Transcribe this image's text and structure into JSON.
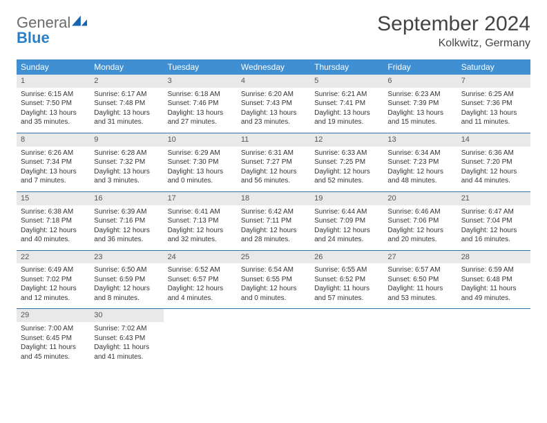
{
  "logo": {
    "text_gray": "General",
    "text_blue": "Blue"
  },
  "title": "September 2024",
  "location": "Kolkwitz, Germany",
  "colors": {
    "header_bg": "#3f8fd2",
    "header_text": "#ffffff",
    "daynum_bg": "#e9e9e9",
    "daynum_text": "#555555",
    "week_border": "#2f6fa8",
    "body_text": "#333333",
    "logo_gray": "#6a6a6a",
    "logo_blue": "#2a7fc9",
    "page_bg": "#ffffff"
  },
  "day_headers": [
    "Sunday",
    "Monday",
    "Tuesday",
    "Wednesday",
    "Thursday",
    "Friday",
    "Saturday"
  ],
  "weeks": [
    [
      {
        "n": "1",
        "sr": "Sunrise: 6:15 AM",
        "ss": "Sunset: 7:50 PM",
        "dl": "Daylight: 13 hours and 35 minutes."
      },
      {
        "n": "2",
        "sr": "Sunrise: 6:17 AM",
        "ss": "Sunset: 7:48 PM",
        "dl": "Daylight: 13 hours and 31 minutes."
      },
      {
        "n": "3",
        "sr": "Sunrise: 6:18 AM",
        "ss": "Sunset: 7:46 PM",
        "dl": "Daylight: 13 hours and 27 minutes."
      },
      {
        "n": "4",
        "sr": "Sunrise: 6:20 AM",
        "ss": "Sunset: 7:43 PM",
        "dl": "Daylight: 13 hours and 23 minutes."
      },
      {
        "n": "5",
        "sr": "Sunrise: 6:21 AM",
        "ss": "Sunset: 7:41 PM",
        "dl": "Daylight: 13 hours and 19 minutes."
      },
      {
        "n": "6",
        "sr": "Sunrise: 6:23 AM",
        "ss": "Sunset: 7:39 PM",
        "dl": "Daylight: 13 hours and 15 minutes."
      },
      {
        "n": "7",
        "sr": "Sunrise: 6:25 AM",
        "ss": "Sunset: 7:36 PM",
        "dl": "Daylight: 13 hours and 11 minutes."
      }
    ],
    [
      {
        "n": "8",
        "sr": "Sunrise: 6:26 AM",
        "ss": "Sunset: 7:34 PM",
        "dl": "Daylight: 13 hours and 7 minutes."
      },
      {
        "n": "9",
        "sr": "Sunrise: 6:28 AM",
        "ss": "Sunset: 7:32 PM",
        "dl": "Daylight: 13 hours and 3 minutes."
      },
      {
        "n": "10",
        "sr": "Sunrise: 6:29 AM",
        "ss": "Sunset: 7:30 PM",
        "dl": "Daylight: 13 hours and 0 minutes."
      },
      {
        "n": "11",
        "sr": "Sunrise: 6:31 AM",
        "ss": "Sunset: 7:27 PM",
        "dl": "Daylight: 12 hours and 56 minutes."
      },
      {
        "n": "12",
        "sr": "Sunrise: 6:33 AM",
        "ss": "Sunset: 7:25 PM",
        "dl": "Daylight: 12 hours and 52 minutes."
      },
      {
        "n": "13",
        "sr": "Sunrise: 6:34 AM",
        "ss": "Sunset: 7:23 PM",
        "dl": "Daylight: 12 hours and 48 minutes."
      },
      {
        "n": "14",
        "sr": "Sunrise: 6:36 AM",
        "ss": "Sunset: 7:20 PM",
        "dl": "Daylight: 12 hours and 44 minutes."
      }
    ],
    [
      {
        "n": "15",
        "sr": "Sunrise: 6:38 AM",
        "ss": "Sunset: 7:18 PM",
        "dl": "Daylight: 12 hours and 40 minutes."
      },
      {
        "n": "16",
        "sr": "Sunrise: 6:39 AM",
        "ss": "Sunset: 7:16 PM",
        "dl": "Daylight: 12 hours and 36 minutes."
      },
      {
        "n": "17",
        "sr": "Sunrise: 6:41 AM",
        "ss": "Sunset: 7:13 PM",
        "dl": "Daylight: 12 hours and 32 minutes."
      },
      {
        "n": "18",
        "sr": "Sunrise: 6:42 AM",
        "ss": "Sunset: 7:11 PM",
        "dl": "Daylight: 12 hours and 28 minutes."
      },
      {
        "n": "19",
        "sr": "Sunrise: 6:44 AM",
        "ss": "Sunset: 7:09 PM",
        "dl": "Daylight: 12 hours and 24 minutes."
      },
      {
        "n": "20",
        "sr": "Sunrise: 6:46 AM",
        "ss": "Sunset: 7:06 PM",
        "dl": "Daylight: 12 hours and 20 minutes."
      },
      {
        "n": "21",
        "sr": "Sunrise: 6:47 AM",
        "ss": "Sunset: 7:04 PM",
        "dl": "Daylight: 12 hours and 16 minutes."
      }
    ],
    [
      {
        "n": "22",
        "sr": "Sunrise: 6:49 AM",
        "ss": "Sunset: 7:02 PM",
        "dl": "Daylight: 12 hours and 12 minutes."
      },
      {
        "n": "23",
        "sr": "Sunrise: 6:50 AM",
        "ss": "Sunset: 6:59 PM",
        "dl": "Daylight: 12 hours and 8 minutes."
      },
      {
        "n": "24",
        "sr": "Sunrise: 6:52 AM",
        "ss": "Sunset: 6:57 PM",
        "dl": "Daylight: 12 hours and 4 minutes."
      },
      {
        "n": "25",
        "sr": "Sunrise: 6:54 AM",
        "ss": "Sunset: 6:55 PM",
        "dl": "Daylight: 12 hours and 0 minutes."
      },
      {
        "n": "26",
        "sr": "Sunrise: 6:55 AM",
        "ss": "Sunset: 6:52 PM",
        "dl": "Daylight: 11 hours and 57 minutes."
      },
      {
        "n": "27",
        "sr": "Sunrise: 6:57 AM",
        "ss": "Sunset: 6:50 PM",
        "dl": "Daylight: 11 hours and 53 minutes."
      },
      {
        "n": "28",
        "sr": "Sunrise: 6:59 AM",
        "ss": "Sunset: 6:48 PM",
        "dl": "Daylight: 11 hours and 49 minutes."
      }
    ],
    [
      {
        "n": "29",
        "sr": "Sunrise: 7:00 AM",
        "ss": "Sunset: 6:45 PM",
        "dl": "Daylight: 11 hours and 45 minutes."
      },
      {
        "n": "30",
        "sr": "Sunrise: 7:02 AM",
        "ss": "Sunset: 6:43 PM",
        "dl": "Daylight: 11 hours and 41 minutes."
      },
      {
        "empty": true
      },
      {
        "empty": true
      },
      {
        "empty": true
      },
      {
        "empty": true
      },
      {
        "empty": true
      }
    ]
  ]
}
